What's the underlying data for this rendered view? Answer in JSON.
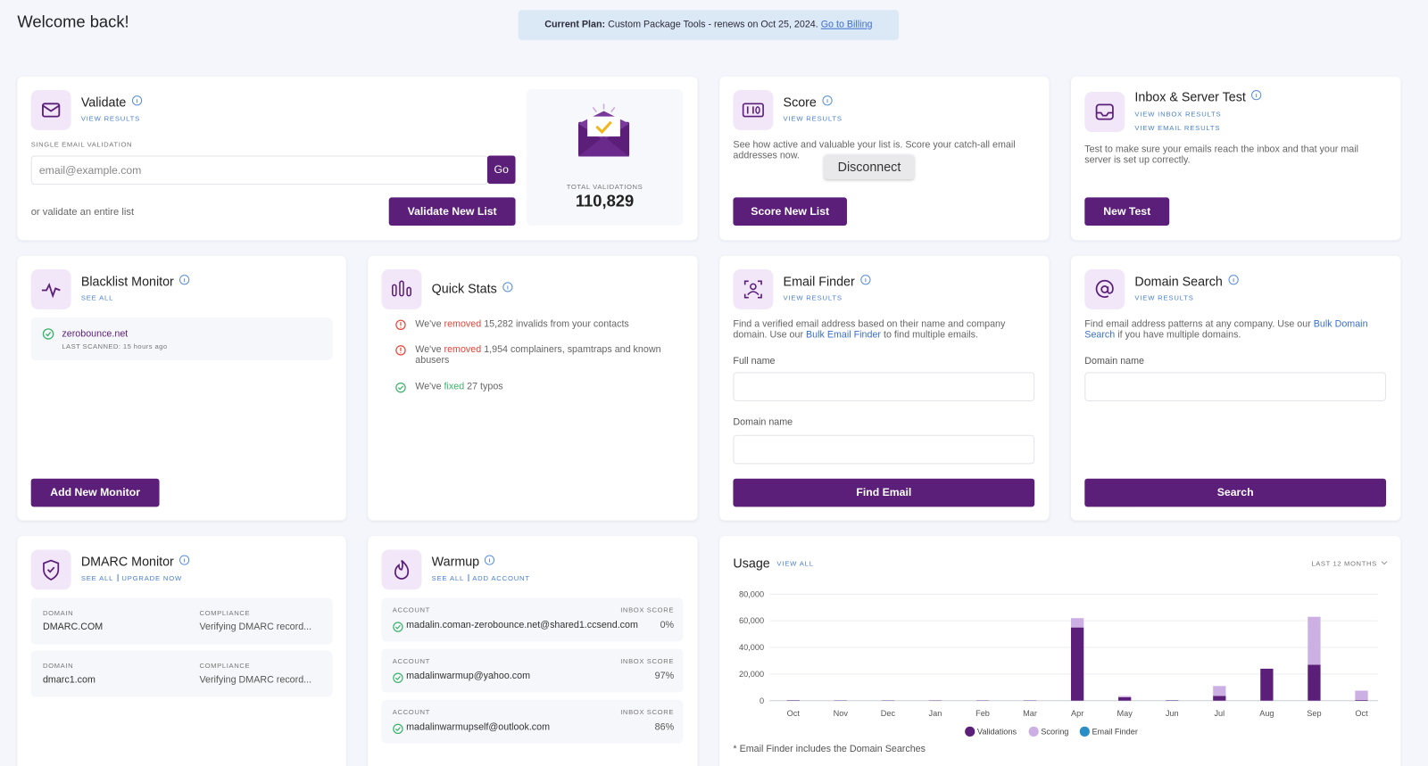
{
  "header": {
    "title": "Welcome back!"
  },
  "plan": {
    "label": "Current Plan:",
    "text": "Custom Package Tools - renews on Oct 25, 2024.",
    "link": "Go to Billing"
  },
  "validate": {
    "title": "Validate",
    "link": "VIEW RESULTS",
    "field_label": "SINGLE EMAIL VALIDATION",
    "placeholder": "email@example.com",
    "go": "Go",
    "list_text": "or validate an entire list",
    "button": "Validate New List",
    "total_label": "TOTAL VALIDATIONS",
    "total": "110,829"
  },
  "score": {
    "title": "Score",
    "link": "VIEW RESULTS",
    "text": "See how active and valuable your list is. Score your catch-all email addresses now.",
    "tooltip": "Disconnect",
    "button": "Score New List"
  },
  "inbox_test": {
    "title": "Inbox & Server Test",
    "links": [
      "VIEW INBOX RESULTS",
      "VIEW EMAIL RESULTS"
    ],
    "text": "Test to make sure your emails reach the inbox and that your mail server is set up correctly.",
    "button": "New Test"
  },
  "blacklist": {
    "title": "Blacklist Monitor",
    "link": "SEE ALL",
    "domain": "zerobounce.net",
    "scanned": "LAST SCANNED: 15 hours ago",
    "button": "Add New Monitor"
  },
  "quick_stats": {
    "title": "Quick Stats",
    "items": [
      {
        "before": "We've",
        "highlight": "removed",
        "after": "15,282 invalids from your contacts"
      },
      {
        "before": "We've",
        "highlight": "removed",
        "after": "1,954 complainers, spamtraps and known abusers"
      },
      {
        "before": "We've",
        "highlight": "fixed",
        "after": "27 typos"
      }
    ]
  },
  "email_finder": {
    "title": "Email Finder",
    "link": "VIEW RESULTS",
    "text_before": "Find a verified email address based on their name and company domain. Use our",
    "text_link": "Bulk Email Finder",
    "text_after": "to find multiple emails.",
    "fields": [
      "Full name",
      "Domain name"
    ],
    "button": "Find Email"
  },
  "domain_search": {
    "title": "Domain Search",
    "link": "VIEW RESULTS",
    "text_before": "Find email address patterns at any company. Use our",
    "text_link": "Bulk Domain Search",
    "text_after": "if you have multiple domains.",
    "field": "Domain name",
    "button": "Search"
  },
  "dmarc": {
    "title": "DMARC Monitor",
    "links": [
      "SEE ALL",
      "UPGRADE NOW"
    ],
    "col_domain": "DOMAIN",
    "col_compliance": "COMPLIANCE",
    "rows": [
      {
        "domain": "DMARC.COM",
        "status": "Verifying DMARC record..."
      },
      {
        "domain": "dmarc1.com",
        "status": "Verifying DMARC record..."
      }
    ]
  },
  "warmup": {
    "title": "Warmup",
    "links": [
      "SEE ALL",
      "ADD ACCOUNT"
    ],
    "col_account": "ACCOUNT",
    "col_score": "INBOX SCORE",
    "rows": [
      {
        "account": "madalin.coman-zerobounce.net@shared1.ccsend.com",
        "score": "0%"
      },
      {
        "account": "madalinwarmup@yahoo.com",
        "score": "97%"
      },
      {
        "account": "madalinwarmupself@outlook.com",
        "score": "86%"
      }
    ]
  },
  "usage": {
    "title": "Usage",
    "link": "VIEW ALL",
    "period": "LAST 12 MONTHS",
    "note": "* Email Finder includes the Domain Searches"
  },
  "chart_data": {
    "type": "stacked_bar",
    "categories": [
      "Oct",
      "Nov",
      "Dec",
      "Jan",
      "Feb",
      "Mar",
      "Apr",
      "May",
      "Jun",
      "Jul",
      "Aug",
      "Sep",
      "Oct"
    ],
    "series": [
      {
        "name": "Validations",
        "color": "#5b1f7a",
        "values": [
          300,
          200,
          200,
          200,
          200,
          200,
          55000,
          2500,
          300,
          3500,
          24000,
          27000,
          500
        ]
      },
      {
        "name": "Scoring",
        "color": "#cdb0e3",
        "values": [
          0,
          0,
          0,
          0,
          0,
          0,
          7000,
          1000,
          0,
          7500,
          0,
          36000,
          7000
        ]
      },
      {
        "name": "Email Finder",
        "color": "#2a8fc7",
        "values": [
          0,
          0,
          0,
          0,
          0,
          0,
          0,
          0,
          0,
          0,
          0,
          0,
          0
        ]
      }
    ],
    "ylim": [
      0,
      80000
    ],
    "yticks": [
      0,
      {
        "value": 20000,
        "label": "20,000"
      },
      {
        "value": 40000,
        "label": "40,000"
      },
      {
        "value": 60000,
        "label": "60,000"
      },
      {
        "value": 80000,
        "label": "80,000"
      }
    ],
    "grid": true
  }
}
